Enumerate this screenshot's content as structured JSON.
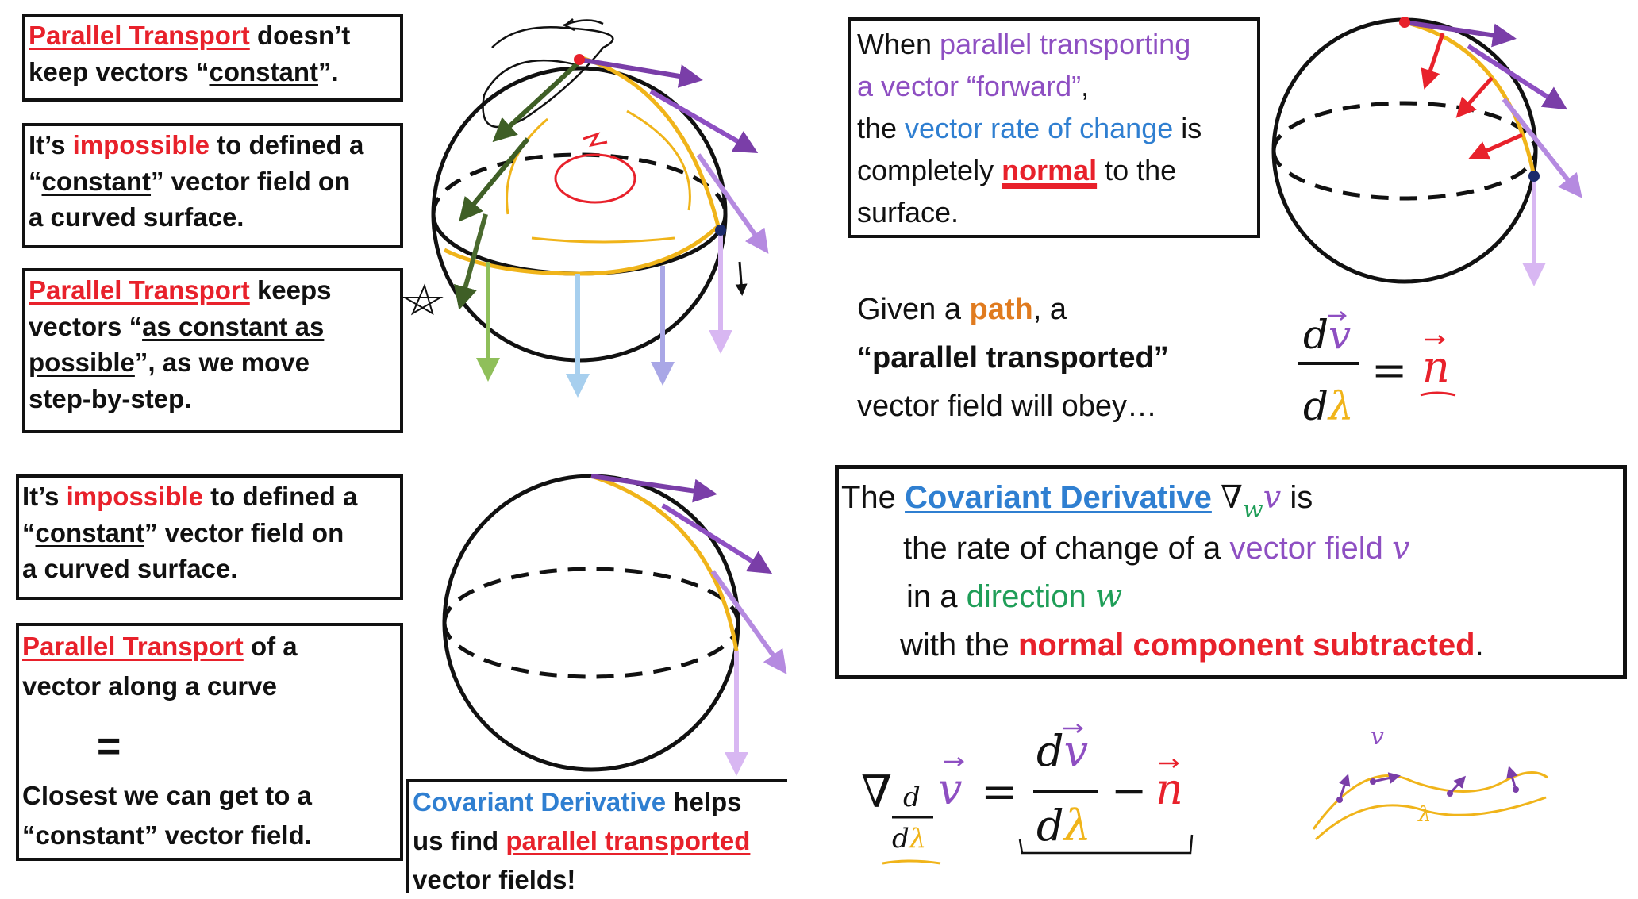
{
  "top_left": {
    "box1": {
      "term": "Parallel Transport",
      "rest_a": " doesn’t",
      "line2_a": "keep vectors “",
      "constant": "constant",
      "line2_b": "”."
    },
    "box2": {
      "l1_a": "It’s ",
      "impossible": "impossible",
      "l1_b": " to defined a",
      "l2_a": "“",
      "constant": "constant",
      "l2_b": "” vector field on",
      "l3": "a curved surface."
    },
    "box3": {
      "term": "Parallel Transport",
      "rest": " keeps",
      "l2_a": "vectors “",
      "as_constant": "as constant as",
      "possible": "possible",
      "l3_b": "”, as we move",
      "l4": "step-by-step."
    }
  },
  "top_right": {
    "box": {
      "l1_a": "When ",
      "l1_b": "parallel transporting",
      "l2": "a vector “forward”",
      "l2_c": ",",
      "l3_a": "the ",
      "l3_b": "vector rate of change",
      "l3_c": " is",
      "l4_a": "completely ",
      "normal": "normal",
      "l4_b": " to the",
      "l5": "surface."
    },
    "given": {
      "l1_a": "Given a ",
      "path": "path",
      "l1_b": ", a",
      "l2": "“parallel transported”",
      "l3": "vector field will obey…"
    },
    "eq": {
      "num_d": "d",
      "num_v": "v",
      "den_d": "d",
      "den_l": "λ",
      "eq": "=",
      "n": "n"
    }
  },
  "bottom_left": {
    "box1": {
      "l1_a": "It’s ",
      "impossible": "impossible",
      "l1_b": " to defined a",
      "l2_a": "“",
      "constant": "constant",
      "l2_b": "” vector field on",
      "l3": "a curved surface."
    },
    "box2": {
      "term": "Parallel Transport",
      "rest": " of a",
      "l2": "vector along a curve",
      "equals": "=",
      "l4": "Closest we can get to a",
      "l5": "“constant” vector field."
    },
    "box3": {
      "term": "Covariant Derivative",
      "rest": " helps",
      "l2_a": "us find ",
      "pt": "parallel transported",
      "l3": "vector fields!"
    }
  },
  "bottom_right": {
    "box": {
      "l1_a": "The ",
      "term": "Covariant Derivative",
      "nabla": "∇",
      "w": "w",
      "v": "v",
      "is": " is",
      "l2_a": "the rate of change of a ",
      "l2_b": "vector field ",
      "l2_v": "v",
      "l3_a": "in a ",
      "l3_b": "direction ",
      "l3_w": "w",
      "l4_a": "with the ",
      "l4_b": "normal component subtracted",
      "l4_c": "."
    },
    "eq": {
      "nabla": "∇",
      "sub_d": "d",
      "sub_dl_d": "d",
      "sub_dl_l": "λ",
      "v": "v",
      "eq": "=",
      "num_d": "d",
      "num_v": "v",
      "den_d": "d",
      "den_l": "λ",
      "minus": "−",
      "n": "n"
    },
    "sketch": {
      "v_label": "v",
      "lambda": "λ"
    }
  },
  "colors": {
    "red": "#e8212b",
    "purple": "#8e4fc2",
    "blue": "#2f7fd1",
    "orange": "#e07b1f",
    "green": "#1f9e58",
    "yellow": "#f0b41a",
    "dark_green": "#4a6a2e"
  }
}
